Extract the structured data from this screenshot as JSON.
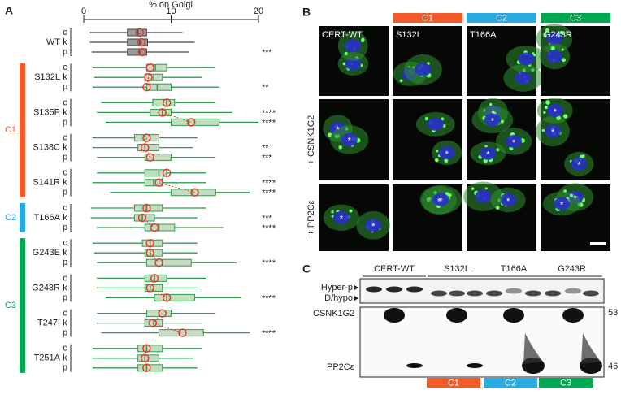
{
  "chart_data": {
    "type": "box",
    "letter": "A",
    "xlabel": "% on Golgi",
    "xlim": [
      0,
      20
    ],
    "xticks": [
      0,
      10,
      20
    ],
    "mean_color": "#e2392d",
    "groups": [
      {
        "name": "WT",
        "color": "#444444",
        "fill": "#9a9a9a",
        "rows": [
          {
            "label": "c",
            "whislo": 0.7,
            "q1": 5.0,
            "med": 6.2,
            "q3": 7.2,
            "whishi": 11.3,
            "mean": 6.4
          },
          {
            "label": "k",
            "whislo": 0.7,
            "q1": 5.0,
            "med": 6.4,
            "q3": 7.3,
            "whishi": 12.7,
            "mean": 6.6
          },
          {
            "label": "p",
            "whislo": 0.9,
            "q1": 5.0,
            "med": 6.4,
            "q3": 7.2,
            "whishi": 12.0,
            "mean": 6.7,
            "sig": "***"
          }
        ]
      },
      {
        "name": "S132L",
        "color": "#2e9e4f",
        "fill": "#c5dcc0",
        "rows": [
          {
            "label": "c",
            "whislo": 1.0,
            "q1": 7.2,
            "med": 8.2,
            "q3": 9.5,
            "whishi": 15.0,
            "mean": 7.6
          },
          {
            "label": "k",
            "whislo": 1.2,
            "q1": 7.0,
            "med": 8.0,
            "q3": 9.0,
            "whishi": 13.5,
            "mean": 7.4
          },
          {
            "label": "p",
            "whislo": 1.0,
            "q1": 7.2,
            "med": 8.4,
            "q3": 10.0,
            "whishi": 15.5,
            "mean": 7.2,
            "sig": "**"
          }
        ]
      },
      {
        "name": "S135P",
        "color": "#2e9e4f",
        "fill": "#c5dcc0",
        "rows": [
          {
            "label": "c",
            "whislo": 2.0,
            "q1": 7.9,
            "med": 9.5,
            "q3": 10.4,
            "whishi": 15.0,
            "mean": 9.5
          },
          {
            "label": "k",
            "whislo": 1.5,
            "q1": 7.6,
            "med": 9.0,
            "q3": 10.0,
            "whishi": 17.0,
            "mean": 9.0,
            "sig": "****"
          },
          {
            "label": "p",
            "whislo": 2.5,
            "q1": 10.0,
            "med": 12.0,
            "q3": 15.5,
            "whishi": 20.0,
            "mean": 12.3,
            "sig": "****"
          }
        ]
      },
      {
        "name": "S138C",
        "color": "#2e9e4f",
        "fill": "#c5dcc0",
        "rows": [
          {
            "label": "c",
            "whislo": 1.0,
            "q1": 5.8,
            "med": 7.0,
            "q3": 8.6,
            "whishi": 13.0,
            "mean": 7.2
          },
          {
            "label": "k",
            "whislo": 1.0,
            "q1": 6.2,
            "med": 7.0,
            "q3": 8.6,
            "whishi": 12.5,
            "mean": 7.0,
            "sig": "**"
          },
          {
            "label": "p",
            "whislo": 1.5,
            "q1": 7.0,
            "med": 8.0,
            "q3": 10.0,
            "whishi": 15.0,
            "mean": 7.6,
            "sig": "***"
          }
        ]
      },
      {
        "name": "S141R",
        "color": "#2e9e4f",
        "fill": "#c5dcc0",
        "rows": [
          {
            "label": "c",
            "whislo": 1.5,
            "q1": 7.0,
            "med": 8.6,
            "q3": 9.5,
            "whishi": 14.0,
            "mean": 9.5
          },
          {
            "label": "k",
            "whislo": 1.0,
            "q1": 7.0,
            "med": 8.0,
            "q3": 9.0,
            "whishi": 14.0,
            "mean": 8.6,
            "sig": "****"
          },
          {
            "label": "p",
            "whislo": 3.0,
            "q1": 10.0,
            "med": 12.5,
            "q3": 15.1,
            "whishi": 19.0,
            "mean": 12.7,
            "sig": "****"
          }
        ]
      },
      {
        "name": "T166A",
        "color": "#2e9e4f",
        "fill": "#c5dcc0",
        "rows": [
          {
            "label": "c",
            "whislo": 0.8,
            "q1": 5.8,
            "med": 7.2,
            "q3": 9.0,
            "whishi": 14.0,
            "mean": 7.2
          },
          {
            "label": "k",
            "whislo": 0.8,
            "q1": 5.8,
            "med": 6.7,
            "q3": 8.1,
            "whishi": 13.0,
            "mean": 6.7,
            "sig": "***"
          },
          {
            "label": "p",
            "whislo": 1.5,
            "q1": 7.0,
            "med": 8.6,
            "q3": 10.4,
            "whishi": 16.0,
            "mean": 8.1,
            "sig": "****"
          }
        ]
      },
      {
        "name": "G243E",
        "color": "#2e9e4f",
        "fill": "#c5dcc0",
        "rows": [
          {
            "label": "c",
            "whislo": 1.0,
            "q1": 6.7,
            "med": 7.6,
            "q3": 9.0,
            "whishi": 13.0,
            "mean": 7.6
          },
          {
            "label": "k",
            "whislo": 1.2,
            "q1": 7.0,
            "med": 7.6,
            "q3": 9.0,
            "whishi": 13.0,
            "mean": 7.6
          },
          {
            "label": "p",
            "whislo": 1.5,
            "q1": 7.2,
            "med": 9.0,
            "q3": 12.3,
            "whishi": 17.5,
            "mean": 8.6,
            "sig": "****"
          }
        ]
      },
      {
        "name": "G243R",
        "color": "#2e9e4f",
        "fill": "#c5dcc0",
        "rows": [
          {
            "label": "c",
            "whislo": 1.5,
            "q1": 7.0,
            "med": 8.1,
            "q3": 9.5,
            "whishi": 14.0,
            "mean": 8.1
          },
          {
            "label": "k",
            "whislo": 1.5,
            "q1": 7.0,
            "med": 7.6,
            "q3": 9.0,
            "whishi": 13.0,
            "mean": 7.6
          },
          {
            "label": "p",
            "whislo": 2.5,
            "q1": 8.1,
            "med": 9.5,
            "q3": 12.7,
            "whishi": 18.0,
            "mean": 9.5,
            "sig": "****"
          }
        ]
      },
      {
        "name": "T247I",
        "color": "#2e9e4f",
        "fill": "#c5dcc0",
        "rows": [
          {
            "label": "c",
            "whislo": 1.5,
            "q1": 7.2,
            "med": 8.6,
            "q3": 10.0,
            "whishi": 15.0,
            "mean": 9.0
          },
          {
            "label": "k",
            "whislo": 1.5,
            "q1": 7.0,
            "med": 8.0,
            "q3": 9.0,
            "whishi": 13.5,
            "mean": 7.9
          },
          {
            "label": "p",
            "whislo": 2.0,
            "q1": 8.6,
            "med": 11.0,
            "q3": 13.7,
            "whishi": 19.0,
            "mean": 11.3,
            "sig": "****"
          }
        ]
      },
      {
        "name": "T251A",
        "color": "#2e9e4f",
        "fill": "#c5dcc0",
        "rows": [
          {
            "label": "c",
            "whislo": 1.0,
            "q1": 6.2,
            "med": 7.2,
            "q3": 9.0,
            "whishi": 13.5,
            "mean": 7.2
          },
          {
            "label": "k",
            "whislo": 1.0,
            "q1": 6.2,
            "med": 7.0,
            "q3": 8.6,
            "whishi": 12.5,
            "mean": 7.0
          },
          {
            "label": "p",
            "whislo": 1.0,
            "q1": 6.2,
            "med": 7.2,
            "q3": 9.0,
            "whishi": 13.0,
            "mean": 7.2
          }
        ]
      }
    ],
    "classes": [
      {
        "label": "C1",
        "color": "#f15a29",
        "members": [
          "S132L",
          "S135P",
          "S138C",
          "S141R"
        ]
      },
      {
        "label": "C2",
        "color": "#29aae1",
        "members": [
          "T166A"
        ]
      },
      {
        "label": "C3",
        "color": "#00a650",
        "members": [
          "G243E",
          "G243R",
          "T247I",
          "T251A"
        ]
      }
    ]
  },
  "panel_b": {
    "letter": "B",
    "classes": [
      "C1",
      "C2",
      "C3"
    ],
    "columns": [
      "CERT-WT",
      "S132L",
      "T166A",
      "G243R"
    ],
    "rows": [
      "+ CSNK1G2",
      "+ PP2Cε"
    ],
    "asterisks": [
      [
        [
          "*",
          "*"
        ],
        [
          "*"
        ],
        [
          "*",
          "*",
          "*",
          "*"
        ],
        [
          "*",
          "*",
          "*"
        ]
      ],
      [
        [
          "*",
          "*"
        ],
        [
          "*",
          "*"
        ],
        [
          "*"
        ],
        [
          "*",
          "*"
        ]
      ]
    ]
  },
  "panel_c": {
    "letter": "C",
    "lanes": [
      "CERT-WT",
      "S132L",
      "T166A",
      "G243R"
    ],
    "states": [
      "Hyper-p",
      "D/hypo"
    ],
    "proteins": [
      "CSNK1G2",
      "PP2Cε"
    ],
    "markers": [
      53,
      46
    ],
    "classes": [
      "C1",
      "C2",
      "C3"
    ]
  }
}
